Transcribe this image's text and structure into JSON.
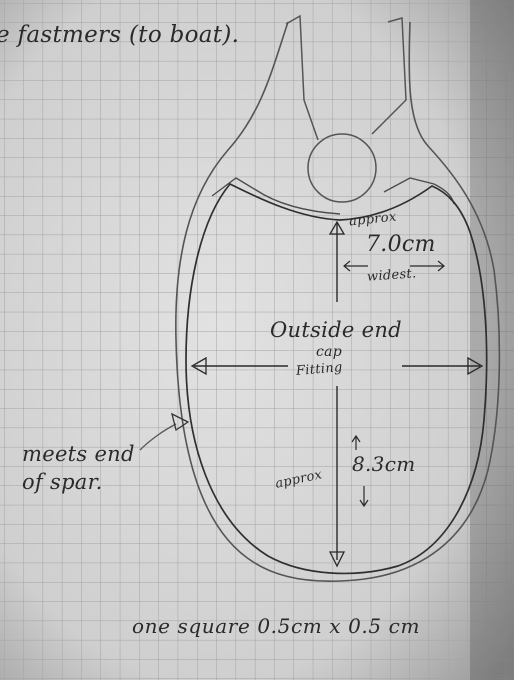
{
  "notes": {
    "top": "e fastmers (to boat).",
    "approx_top": "approx",
    "width": "7.0cm",
    "widest": "widest.",
    "outside": "Outside end",
    "cap": "cap",
    "fitting": "Fitting",
    "meets_line1": "meets end",
    "meets_line2": "of spar.",
    "approx_bottom": "approx",
    "height": "8.3cm",
    "scale": "one square   0.5cm x 0.5 cm"
  },
  "colors": {
    "paper": "#dedede",
    "grid": "#a9a9a9",
    "ink": "#2a2a2a",
    "pencil": "#5a5a5a"
  }
}
